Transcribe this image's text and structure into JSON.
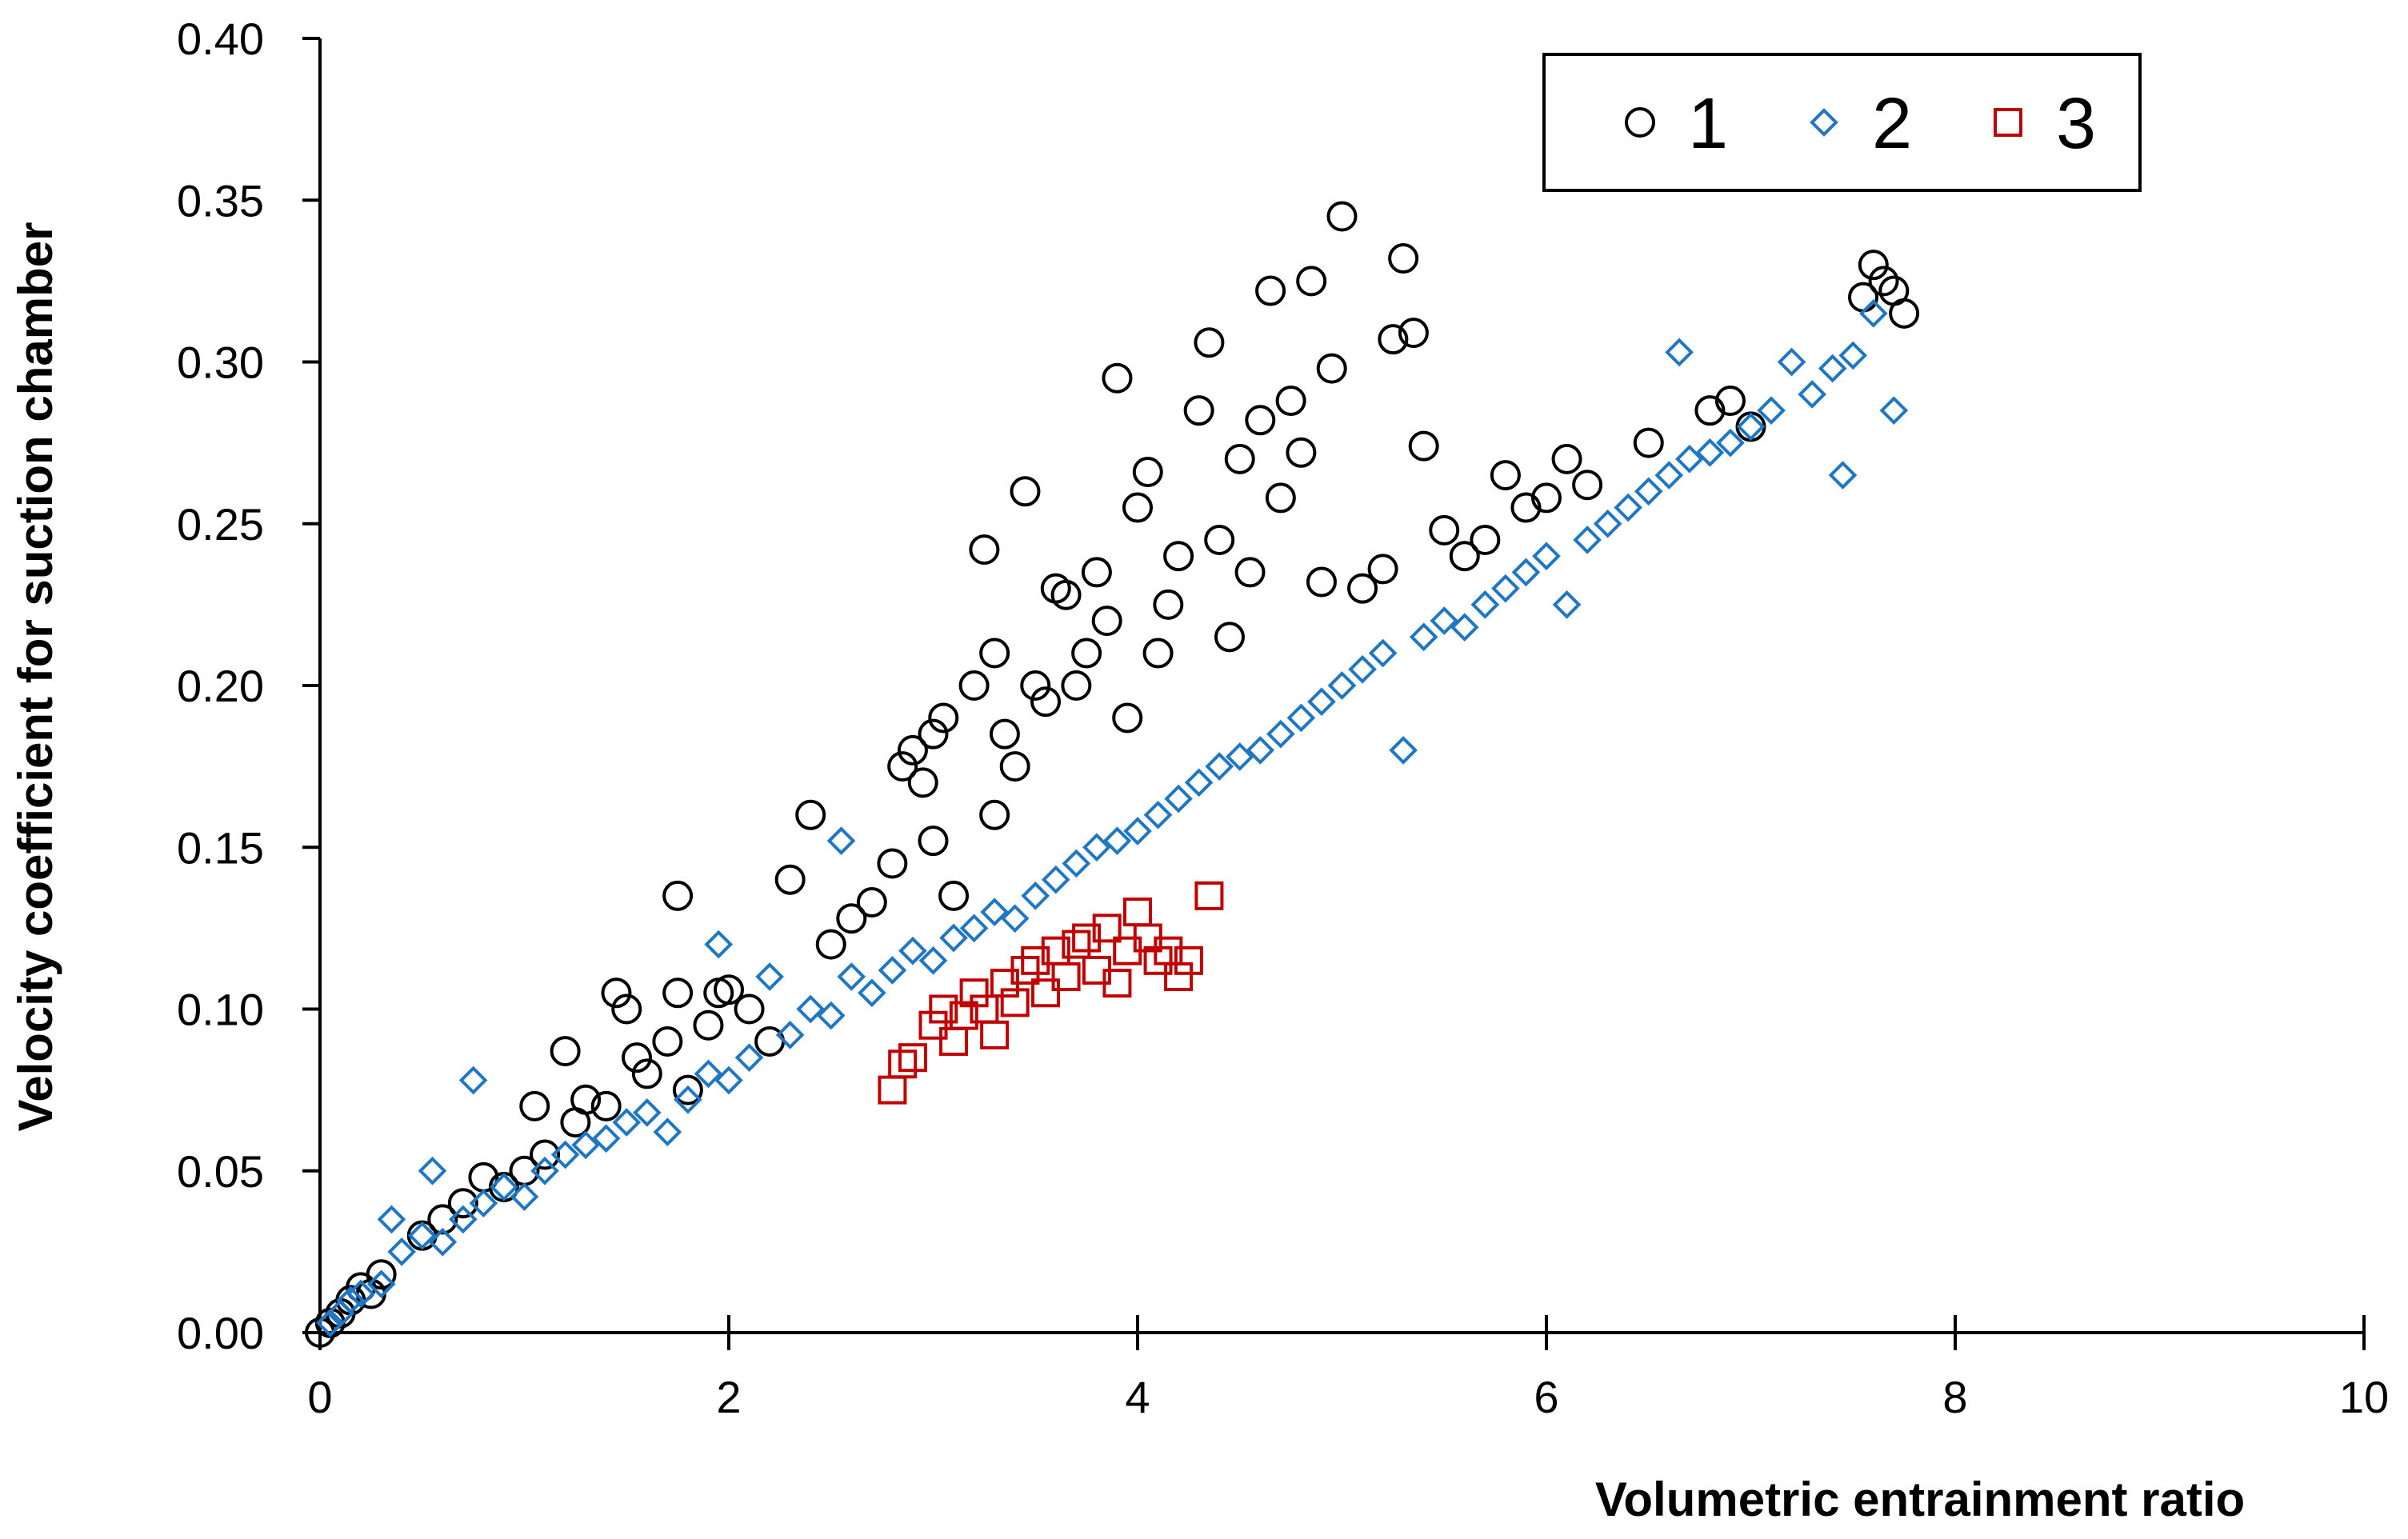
{
  "chart_data": {
    "type": "scatter",
    "title": "",
    "xlabel": "Volumetric  entrainment ratio",
    "ylabel": "Velocity coefficient for suction chamber",
    "xlim": [
      0,
      10
    ],
    "ylim": [
      0,
      0.4
    ],
    "xticks": [
      0,
      2,
      4,
      6,
      8,
      10
    ],
    "xtick_labels": [
      "0",
      "2",
      "4",
      "6",
      "8",
      "10"
    ],
    "yticks": [
      0,
      0.05,
      0.1,
      0.15,
      0.2,
      0.25,
      0.3,
      0.35,
      0.4
    ],
    "ytick_labels": [
      "0.00",
      "0.05",
      "0.10",
      "0.15",
      "0.20",
      "0.25",
      "0.30",
      "0.35",
      "0.40"
    ],
    "grid": false,
    "legend_position": "top-right",
    "series": [
      {
        "name": "1",
        "marker": "circle",
        "color": "#000000",
        "points": [
          [
            0.0,
            0.0
          ],
          [
            0.05,
            0.003
          ],
          [
            0.1,
            0.006
          ],
          [
            0.15,
            0.01
          ],
          [
            0.2,
            0.014
          ],
          [
            0.25,
            0.012
          ],
          [
            0.3,
            0.018
          ],
          [
            0.5,
            0.03
          ],
          [
            0.6,
            0.035
          ],
          [
            0.7,
            0.04
          ],
          [
            0.8,
            0.048
          ],
          [
            0.9,
            0.045
          ],
          [
            1.0,
            0.05
          ],
          [
            1.05,
            0.07
          ],
          [
            1.1,
            0.055
          ],
          [
            1.2,
            0.087
          ],
          [
            1.25,
            0.065
          ],
          [
            1.3,
            0.072
          ],
          [
            1.4,
            0.07
          ],
          [
            1.45,
            0.105
          ],
          [
            1.5,
            0.1
          ],
          [
            1.55,
            0.085
          ],
          [
            1.6,
            0.08
          ],
          [
            1.7,
            0.09
          ],
          [
            1.75,
            0.105
          ],
          [
            1.75,
            0.135
          ],
          [
            1.8,
            0.075
          ],
          [
            1.9,
            0.095
          ],
          [
            1.95,
            0.105
          ],
          [
            2.0,
            0.106
          ],
          [
            2.1,
            0.1
          ],
          [
            2.2,
            0.09
          ],
          [
            2.3,
            0.14
          ],
          [
            2.4,
            0.16
          ],
          [
            2.5,
            0.12
          ],
          [
            2.6,
            0.128
          ],
          [
            2.7,
            0.133
          ],
          [
            2.8,
            0.145
          ],
          [
            2.85,
            0.175
          ],
          [
            2.9,
            0.18
          ],
          [
            2.95,
            0.17
          ],
          [
            3.0,
            0.152
          ],
          [
            3.0,
            0.185
          ],
          [
            3.05,
            0.19
          ],
          [
            3.1,
            0.135
          ],
          [
            3.2,
            0.2
          ],
          [
            3.25,
            0.242
          ],
          [
            3.3,
            0.16
          ],
          [
            3.3,
            0.21
          ],
          [
            3.35,
            0.185
          ],
          [
            3.4,
            0.175
          ],
          [
            3.45,
            0.26
          ],
          [
            3.5,
            0.2
          ],
          [
            3.55,
            0.195
          ],
          [
            3.6,
            0.23
          ],
          [
            3.65,
            0.228
          ],
          [
            3.7,
            0.2
          ],
          [
            3.75,
            0.21
          ],
          [
            3.8,
            0.235
          ],
          [
            3.85,
            0.22
          ],
          [
            3.9,
            0.295
          ],
          [
            3.95,
            0.19
          ],
          [
            4.0,
            0.255
          ],
          [
            4.05,
            0.266
          ],
          [
            4.1,
            0.21
          ],
          [
            4.15,
            0.225
          ],
          [
            4.2,
            0.24
          ],
          [
            4.3,
            0.285
          ],
          [
            4.35,
            0.306
          ],
          [
            4.4,
            0.245
          ],
          [
            4.45,
            0.215
          ],
          [
            4.5,
            0.27
          ],
          [
            4.55,
            0.235
          ],
          [
            4.6,
            0.282
          ],
          [
            4.65,
            0.322
          ],
          [
            4.7,
            0.258
          ],
          [
            4.75,
            0.288
          ],
          [
            4.8,
            0.272
          ],
          [
            4.85,
            0.325
          ],
          [
            4.9,
            0.232
          ],
          [
            4.95,
            0.298
          ],
          [
            5.0,
            0.345
          ],
          [
            5.1,
            0.23
          ],
          [
            5.2,
            0.236
          ],
          [
            5.25,
            0.307
          ],
          [
            5.3,
            0.332
          ],
          [
            5.35,
            0.309
          ],
          [
            5.4,
            0.274
          ],
          [
            5.5,
            0.248
          ],
          [
            5.6,
            0.24
          ],
          [
            5.7,
            0.245
          ],
          [
            5.8,
            0.265
          ],
          [
            5.9,
            0.255
          ],
          [
            6.0,
            0.258
          ],
          [
            6.1,
            0.27
          ],
          [
            6.2,
            0.262
          ],
          [
            6.5,
            0.275
          ],
          [
            6.8,
            0.285
          ],
          [
            6.9,
            0.288
          ],
          [
            7.0,
            0.28
          ],
          [
            7.55,
            0.32
          ],
          [
            7.6,
            0.33
          ],
          [
            7.65,
            0.325
          ],
          [
            7.7,
            0.322
          ],
          [
            7.75,
            0.315
          ]
        ]
      },
      {
        "name": "2",
        "marker": "diamond",
        "color": "#1f77c4",
        "points": [
          [
            0.05,
            0.003
          ],
          [
            0.1,
            0.006
          ],
          [
            0.15,
            0.01
          ],
          [
            0.2,
            0.012
          ],
          [
            0.3,
            0.015
          ],
          [
            0.35,
            0.035
          ],
          [
            0.4,
            0.025
          ],
          [
            0.5,
            0.03
          ],
          [
            0.55,
            0.05
          ],
          [
            0.6,
            0.028
          ],
          [
            0.7,
            0.035
          ],
          [
            0.75,
            0.078
          ],
          [
            0.8,
            0.04
          ],
          [
            0.9,
            0.045
          ],
          [
            1.0,
            0.042
          ],
          [
            1.1,
            0.05
          ],
          [
            1.2,
            0.055
          ],
          [
            1.3,
            0.058
          ],
          [
            1.4,
            0.06
          ],
          [
            1.5,
            0.065
          ],
          [
            1.6,
            0.068
          ],
          [
            1.7,
            0.062
          ],
          [
            1.8,
            0.072
          ],
          [
            1.9,
            0.08
          ],
          [
            1.95,
            0.12
          ],
          [
            2.0,
            0.078
          ],
          [
            2.1,
            0.085
          ],
          [
            2.2,
            0.11
          ],
          [
            2.3,
            0.092
          ],
          [
            2.4,
            0.1
          ],
          [
            2.5,
            0.098
          ],
          [
            2.55,
            0.152
          ],
          [
            2.6,
            0.11
          ],
          [
            2.7,
            0.105
          ],
          [
            2.8,
            0.112
          ],
          [
            2.9,
            0.118
          ],
          [
            3.0,
            0.115
          ],
          [
            3.1,
            0.122
          ],
          [
            3.2,
            0.125
          ],
          [
            3.3,
            0.13
          ],
          [
            3.4,
            0.128
          ],
          [
            3.5,
            0.135
          ],
          [
            3.6,
            0.14
          ],
          [
            3.7,
            0.145
          ],
          [
            3.8,
            0.15
          ],
          [
            3.9,
            0.152
          ],
          [
            4.0,
            0.155
          ],
          [
            4.1,
            0.16
          ],
          [
            4.2,
            0.165
          ],
          [
            4.3,
            0.17
          ],
          [
            4.4,
            0.175
          ],
          [
            4.5,
            0.178
          ],
          [
            4.6,
            0.18
          ],
          [
            4.7,
            0.185
          ],
          [
            4.8,
            0.19
          ],
          [
            4.9,
            0.195
          ],
          [
            5.0,
            0.2
          ],
          [
            5.1,
            0.205
          ],
          [
            5.2,
            0.21
          ],
          [
            5.3,
            0.18
          ],
          [
            5.4,
            0.215
          ],
          [
            5.5,
            0.22
          ],
          [
            5.6,
            0.218
          ],
          [
            5.7,
            0.225
          ],
          [
            5.8,
            0.23
          ],
          [
            5.9,
            0.235
          ],
          [
            6.0,
            0.24
          ],
          [
            6.1,
            0.225
          ],
          [
            6.2,
            0.245
          ],
          [
            6.3,
            0.25
          ],
          [
            6.4,
            0.255
          ],
          [
            6.5,
            0.26
          ],
          [
            6.6,
            0.265
          ],
          [
            6.65,
            0.303
          ],
          [
            6.7,
            0.27
          ],
          [
            6.8,
            0.272
          ],
          [
            6.9,
            0.275
          ],
          [
            7.0,
            0.28
          ],
          [
            7.1,
            0.285
          ],
          [
            7.2,
            0.3
          ],
          [
            7.3,
            0.29
          ],
          [
            7.4,
            0.298
          ],
          [
            7.45,
            0.265
          ],
          [
            7.5,
            0.302
          ],
          [
            7.6,
            0.315
          ],
          [
            7.7,
            0.285
          ]
        ]
      },
      {
        "name": "3",
        "marker": "square",
        "color": "#c00000",
        "points": [
          [
            2.8,
            0.075
          ],
          [
            2.85,
            0.083
          ],
          [
            2.9,
            0.085
          ],
          [
            3.0,
            0.095
          ],
          [
            3.05,
            0.1
          ],
          [
            3.1,
            0.09
          ],
          [
            3.15,
            0.098
          ],
          [
            3.2,
            0.105
          ],
          [
            3.25,
            0.1
          ],
          [
            3.3,
            0.092
          ],
          [
            3.35,
            0.108
          ],
          [
            3.4,
            0.102
          ],
          [
            3.45,
            0.112
          ],
          [
            3.5,
            0.115
          ],
          [
            3.55,
            0.105
          ],
          [
            3.6,
            0.118
          ],
          [
            3.65,
            0.11
          ],
          [
            3.7,
            0.12
          ],
          [
            3.75,
            0.122
          ],
          [
            3.8,
            0.112
          ],
          [
            3.85,
            0.125
          ],
          [
            3.9,
            0.108
          ],
          [
            3.95,
            0.118
          ],
          [
            4.0,
            0.13
          ],
          [
            4.05,
            0.122
          ],
          [
            4.1,
            0.115
          ],
          [
            4.15,
            0.118
          ],
          [
            4.2,
            0.11
          ],
          [
            4.25,
            0.115
          ],
          [
            4.35,
            0.135
          ]
        ]
      }
    ]
  }
}
